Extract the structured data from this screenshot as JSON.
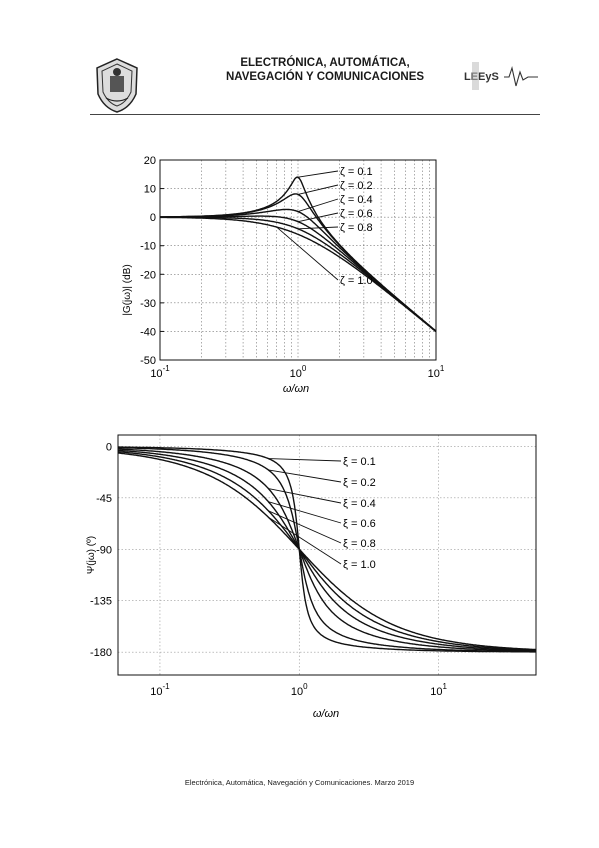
{
  "header": {
    "title_line1": "ELECTRÓNICA, AUTOMÁTICA,",
    "title_line2": "NAVEGACIÓN Y COMUNICACIONES",
    "lab_logo_text": "LEEyS"
  },
  "footer": {
    "text": "Electrónica, Automática, Navegación y Comunicaciones. Marzo 2019"
  },
  "chart_data": [
    {
      "type": "line",
      "title": "",
      "xlabel": "ω/ωn",
      "ylabel": "|G(jω)| (dB)",
      "xscale": "log",
      "xlim": [
        0.1,
        10
      ],
      "ylim": [
        -50,
        20
      ],
      "yticks": [
        20,
        10,
        0,
        -10,
        -20,
        -30,
        -40,
        -50
      ],
      "xticks": [
        {
          "base": "10",
          "exp": "-1",
          "value": 0.1
        },
        {
          "base": "10",
          "exp": "0",
          "value": 1
        },
        {
          "base": "10",
          "exp": "1",
          "value": 10
        }
      ],
      "grid": true,
      "series": [
        {
          "name": "ζ = 0.1",
          "zeta": 0.1,
          "peak_db": 14.0
        },
        {
          "name": "ζ = 0.2",
          "zeta": 0.2,
          "peak_db": 8.1
        },
        {
          "name": "ζ = 0.4",
          "zeta": 0.4,
          "peak_db": 2.7
        },
        {
          "name": "ζ = 0.6",
          "zeta": 0.6,
          "peak_db": 0.4
        },
        {
          "name": "ζ = 0.8",
          "zeta": 0.8,
          "peak_db": 0.0
        },
        {
          "name": "ζ = 1.0",
          "zeta": 1.0,
          "peak_db": 0.0
        }
      ]
    },
    {
      "type": "line",
      "title": "",
      "xlabel": "ω/ωn",
      "ylabel": "Ψ(jω) (º)",
      "xscale": "log",
      "xlim": [
        0.05,
        50
      ],
      "ylim": [
        -200,
        10
      ],
      "yticks": [
        0,
        -45,
        -90,
        -135,
        -180
      ],
      "xticks": [
        {
          "base": "10",
          "exp": "-1",
          "value": 0.1
        },
        {
          "base": "10",
          "exp": "0",
          "value": 1
        },
        {
          "base": "10",
          "exp": "1",
          "value": 10
        }
      ],
      "grid": true,
      "series": [
        {
          "name": "ξ = 0.1",
          "zeta": 0.1,
          "phase_at_wn": -90
        },
        {
          "name": "ξ = 0.2",
          "zeta": 0.2,
          "phase_at_wn": -90
        },
        {
          "name": "ξ = 0.4",
          "zeta": 0.4,
          "phase_at_wn": -90
        },
        {
          "name": "ξ = 0.6",
          "zeta": 0.6,
          "phase_at_wn": -90
        },
        {
          "name": "ξ = 0.8",
          "zeta": 0.8,
          "phase_at_wn": -90
        },
        {
          "name": "ξ = 1.0",
          "zeta": 1.0,
          "phase_at_wn": -90
        }
      ]
    }
  ]
}
